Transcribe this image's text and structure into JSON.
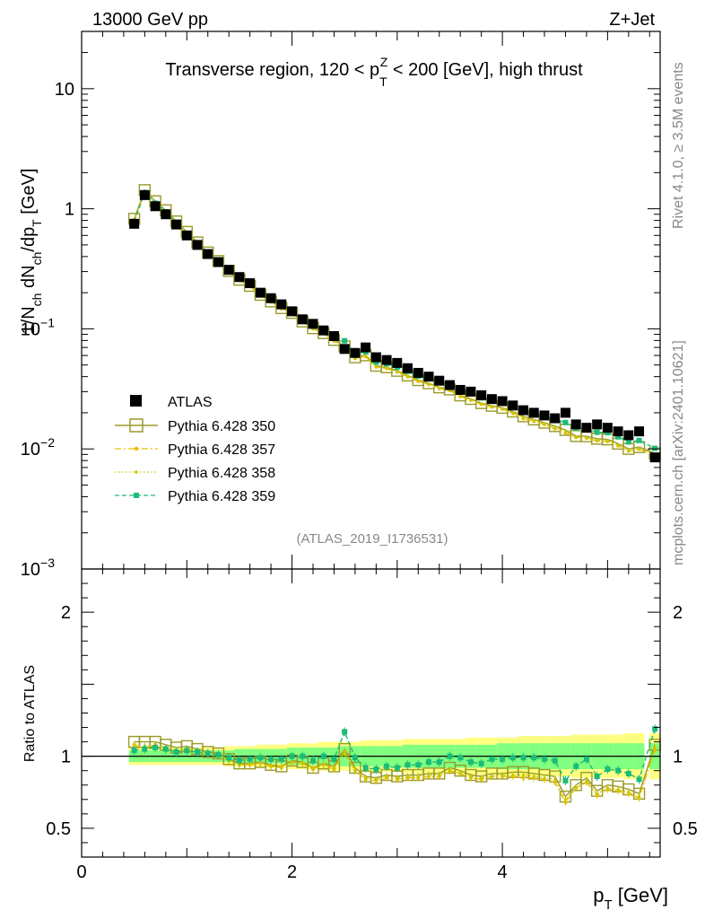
{
  "header": {
    "energy": "13000 GeV pp",
    "process": "Z+Jet"
  },
  "side_notes": {
    "rivet": "Rivet 4.1.0, ≥ 3.5M events",
    "mcplots": "mcplots.cern.ch [arXiv:2401.10621]"
  },
  "analysis_tag": "(ATLAS_2019_I1736531)",
  "chart_data": {
    "type": "scatter",
    "title": "Transverse region, 120 < p_T^Z < 200 [GeV], high thrust",
    "title_parts": {
      "pre": "Transverse region, 120 < p",
      "sub": "T",
      "sup": "Z",
      "post": " < 200 [GeV], high thrust"
    },
    "ylabel_main": "1/N_ch dN_ch/dp_T [GeV]",
    "ylabel_parts": {
      "a": "1/N",
      "a_sub": "ch",
      "b": " dN",
      "b_sub": "ch",
      "c": "/dp",
      "c_sub": "T",
      "d": " [GeV]"
    },
    "ylabel_ratio": "Ratio to ATLAS",
    "xlabel_parts": {
      "a": "p",
      "a_sub": "T",
      "b": " [GeV]"
    },
    "xlim": [
      0,
      5.5
    ],
    "ylim_main": [
      0.001,
      30
    ],
    "ylim_ratio": [
      0.3,
      2.3
    ],
    "x_ticks": [
      0,
      2,
      4
    ],
    "x_tick_labels": [
      "0",
      "2",
      "4"
    ],
    "y_ticks_main": [
      10,
      1,
      0.1,
      0.01,
      0.001
    ],
    "y_tick_labels_main": [
      {
        "base": "10",
        "exp": ""
      },
      {
        "base": "1",
        "exp": ""
      },
      {
        "base": "10",
        "exp": "−1"
      },
      {
        "base": "10",
        "exp": "−2"
      },
      {
        "base": "10",
        "exp": "−3"
      }
    ],
    "y_ticks_ratio": [
      2,
      1,
      0.5
    ],
    "y_tick_labels_ratio": [
      "2",
      "1",
      "0.5"
    ],
    "x": [
      0.5,
      0.6,
      0.7,
      0.8,
      0.9,
      1.0,
      1.1,
      1.2,
      1.3,
      1.4,
      1.5,
      1.6,
      1.7,
      1.8,
      1.9,
      2.0,
      2.1,
      2.2,
      2.3,
      2.4,
      2.5,
      2.6,
      2.7,
      2.8,
      2.9,
      3.0,
      3.1,
      3.2,
      3.3,
      3.4,
      3.5,
      3.6,
      3.7,
      3.8,
      3.9,
      4.0,
      4.1,
      4.2,
      4.3,
      4.4,
      4.5,
      4.6,
      4.7,
      4.8,
      4.9,
      5.0,
      5.1,
      5.2,
      5.3,
      5.45
    ],
    "atlas": [
      0.75,
      1.3,
      1.05,
      0.9,
      0.74,
      0.6,
      0.5,
      0.42,
      0.36,
      0.31,
      0.27,
      0.24,
      0.2,
      0.18,
      0.16,
      0.14,
      0.12,
      0.11,
      0.097,
      0.087,
      0.068,
      0.063,
      0.07,
      0.058,
      0.055,
      0.052,
      0.047,
      0.043,
      0.04,
      0.037,
      0.034,
      0.031,
      0.03,
      0.028,
      0.026,
      0.025,
      0.023,
      0.021,
      0.02,
      0.019,
      0.018,
      0.02,
      0.016,
      0.015,
      0.016,
      0.015,
      0.014,
      0.013,
      0.014,
      0.0085
    ],
    "legend": [
      "ATLAS",
      "Pythia 6.428 350",
      "Pythia 6.428 357",
      "Pythia 6.428 358",
      "Pythia 6.428 359"
    ],
    "legend_position": "lower-left",
    "series": [
      {
        "name": "Pythia 6.428 350",
        "color": "#9a9a2a",
        "style": "open-square",
        "ratio": [
          1.1,
          1.1,
          1.1,
          1.08,
          1.06,
          1.07,
          1.05,
          1.03,
          1.02,
          0.98,
          0.95,
          0.95,
          0.96,
          0.94,
          0.93,
          0.97,
          0.96,
          0.92,
          0.95,
          0.93,
          1.05,
          0.92,
          0.86,
          0.85,
          0.87,
          0.86,
          0.87,
          0.87,
          0.88,
          0.88,
          0.92,
          0.9,
          0.87,
          0.86,
          0.88,
          0.88,
          0.89,
          0.89,
          0.88,
          0.87,
          0.86,
          0.72,
          0.8,
          0.85,
          0.76,
          0.8,
          0.79,
          0.77,
          0.74,
          1.08
        ]
      },
      {
        "name": "Pythia 6.428 357",
        "color": "#e8c000",
        "style": "dashdot",
        "ratio": [
          1.08,
          1.06,
          1.08,
          1.06,
          1.04,
          1.05,
          1.03,
          1.02,
          1.01,
          0.97,
          0.94,
          0.94,
          0.95,
          0.93,
          0.92,
          0.96,
          0.95,
          0.91,
          0.94,
          0.91,
          1.03,
          0.9,
          0.84,
          0.83,
          0.85,
          0.84,
          0.85,
          0.85,
          0.86,
          0.86,
          0.9,
          0.88,
          0.85,
          0.84,
          0.86,
          0.86,
          0.86,
          0.85,
          0.85,
          0.84,
          0.82,
          0.68,
          0.78,
          0.82,
          0.73,
          0.77,
          0.76,
          0.74,
          0.71,
          1.05
        ]
      },
      {
        "name": "Pythia 6.428 358",
        "color": "#c8c800",
        "style": "dotted",
        "ratio": [
          1.05,
          1.07,
          1.07,
          1.05,
          1.04,
          1.04,
          1.03,
          1.02,
          1.0,
          0.97,
          0.94,
          0.95,
          0.95,
          0.93,
          0.93,
          0.96,
          0.95,
          0.92,
          0.94,
          0.92,
          1.02,
          0.9,
          0.85,
          0.84,
          0.86,
          0.85,
          0.86,
          0.86,
          0.87,
          0.87,
          0.9,
          0.88,
          0.86,
          0.85,
          0.86,
          0.87,
          0.87,
          0.87,
          0.86,
          0.85,
          0.84,
          0.7,
          0.78,
          0.83,
          0.74,
          0.78,
          0.77,
          0.75,
          0.72,
          1.06
        ]
      },
      {
        "name": "Pythia 6.428 359",
        "color": "#1abc78",
        "style": "dashed-filled",
        "ratio": [
          1.04,
          1.05,
          1.06,
          1.05,
          1.03,
          1.04,
          1.03,
          1.02,
          1.01,
          0.99,
          0.97,
          0.98,
          0.99,
          0.98,
          0.98,
          1.0,
          1.0,
          0.97,
          1.0,
          0.98,
          1.17,
          0.99,
          0.92,
          0.91,
          0.93,
          0.92,
          0.94,
          0.94,
          0.96,
          0.96,
          1.0,
          0.99,
          0.96,
          0.95,
          0.98,
          0.98,
          0.99,
          0.99,
          0.99,
          0.98,
          0.97,
          0.83,
          0.93,
          0.98,
          0.86,
          0.91,
          0.9,
          0.88,
          0.84,
          1.19
        ]
      }
    ],
    "band_inner": [
      0.04,
      0.04,
      0.04,
      0.04,
      0.04,
      0.04,
      0.04,
      0.04,
      0.04,
      0.04,
      0.05,
      0.05,
      0.05,
      0.05,
      0.05,
      0.06,
      0.06,
      0.06,
      0.06,
      0.06,
      0.07,
      0.07,
      0.07,
      0.07,
      0.07,
      0.07,
      0.08,
      0.08,
      0.08,
      0.08,
      0.08,
      0.08,
      0.08,
      0.08,
      0.08,
      0.09,
      0.09,
      0.09,
      0.09,
      0.09,
      0.09,
      0.09,
      0.09,
      0.09,
      0.09,
      0.09,
      0.09,
      0.09,
      0.09,
      0.09
    ],
    "band_outer": [
      0.06,
      0.06,
      0.06,
      0.06,
      0.06,
      0.06,
      0.06,
      0.06,
      0.06,
      0.07,
      0.07,
      0.07,
      0.08,
      0.08,
      0.08,
      0.09,
      0.09,
      0.09,
      0.1,
      0.1,
      0.1,
      0.1,
      0.11,
      0.11,
      0.11,
      0.11,
      0.12,
      0.12,
      0.12,
      0.12,
      0.12,
      0.12,
      0.13,
      0.13,
      0.13,
      0.13,
      0.13,
      0.14,
      0.14,
      0.14,
      0.14,
      0.14,
      0.15,
      0.15,
      0.15,
      0.15,
      0.15,
      0.16,
      0.16,
      0.16
    ],
    "colors": {
      "band_inner": "#80ff80",
      "band_outer": "#ffff80",
      "atlas": "#000000"
    }
  }
}
